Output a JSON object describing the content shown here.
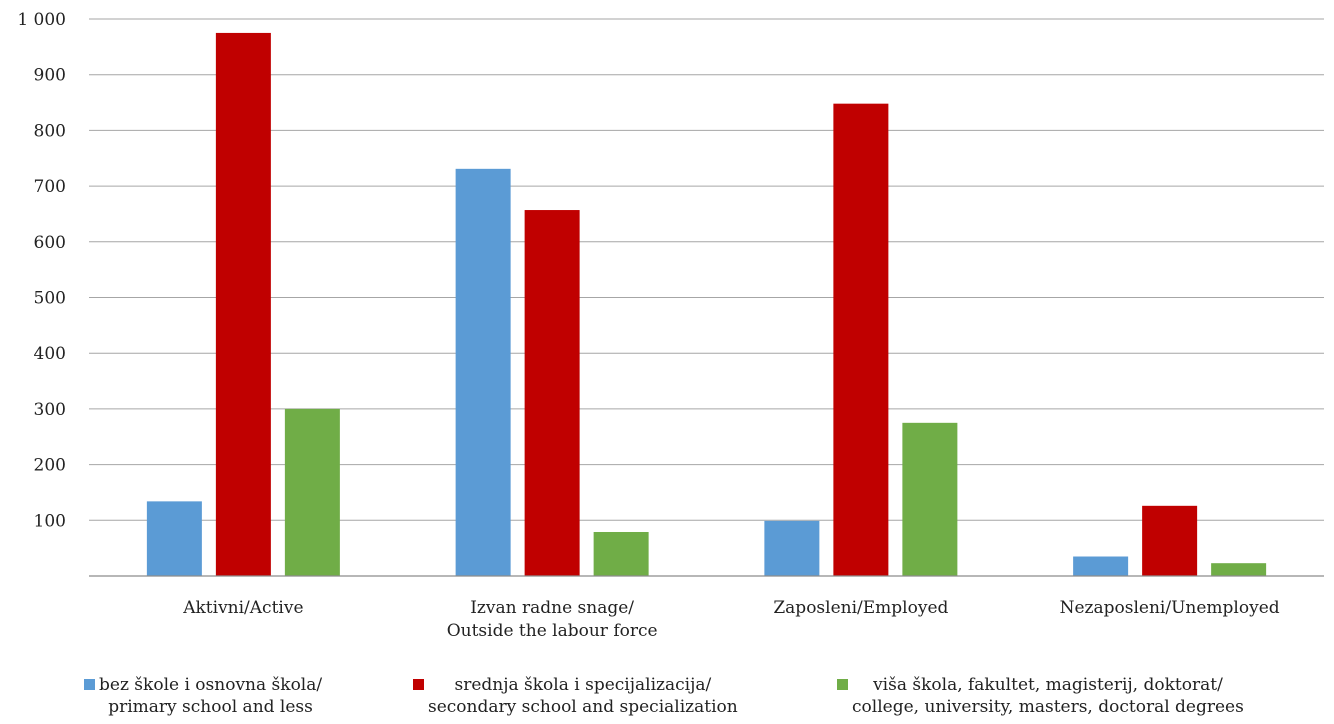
{
  "chart_data": {
    "type": "bar",
    "title": "",
    "xlabel": "",
    "ylabel": "",
    "ylim": [
      0,
      1000
    ],
    "yticks": [
      100,
      200,
      300,
      400,
      500,
      600,
      700,
      800,
      900,
      1000
    ],
    "ytick_labels": [
      "100",
      "200",
      "300",
      "400",
      "500",
      "600",
      "700",
      "800",
      "900",
      "1 000"
    ],
    "grid": true,
    "legend_position": "bottom",
    "categories": [
      [
        "Aktivni/Active"
      ],
      [
        "Izvan radne snage/",
        "Outside the labour force"
      ],
      [
        "Zaposleni/Employed"
      ],
      [
        "Nezaposleni/Unemployed"
      ]
    ],
    "series": [
      {
        "name_lines": [
          "bez škole i osnovna škola/",
          "primary school and less"
        ],
        "color": "#5b9bd5",
        "values": [
          134,
          731,
          99,
          35
        ]
      },
      {
        "name_lines": [
          "srednja škola i specijalizacija/",
          "secondary school and specialization"
        ],
        "color": "#c00000",
        "values": [
          975,
          657,
          848,
          126
        ]
      },
      {
        "name_lines": [
          "viša škola, fakultet, magisterij, doktorat/",
          "college, university, masters, doctoral degrees"
        ],
        "color": "#70ad47",
        "values": [
          300,
          79,
          275,
          23
        ]
      }
    ]
  }
}
